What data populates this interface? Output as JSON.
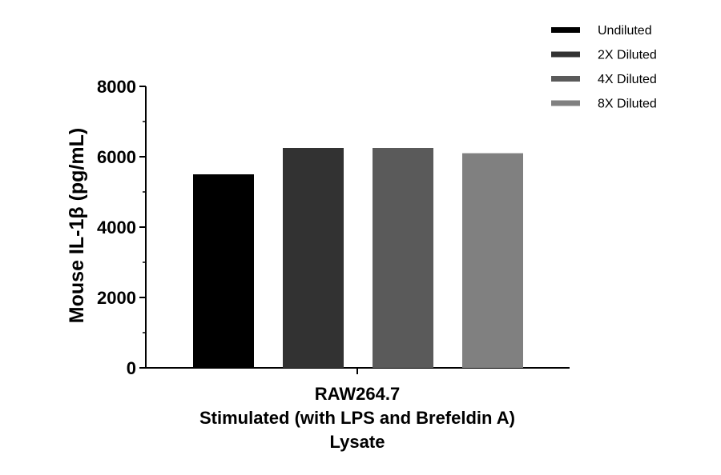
{
  "chart_data": {
    "type": "bar",
    "title": "",
    "ylabel": "Mouse IL-1β (pg/mL)",
    "xlabel_lines": [
      "RAW264.7",
      "Stimulated (with LPS and Brefeldin A)",
      "Lysate"
    ],
    "ylim": [
      0,
      8000
    ],
    "yticks": [
      0,
      2000,
      4000,
      6000,
      8000
    ],
    "categories": [
      "RAW264.7 Stimulated (with LPS and Brefeldin A) Lysate"
    ],
    "series": [
      {
        "name": "Undiluted",
        "values": [
          5500
        ],
        "color": "#000000"
      },
      {
        "name": "2X Diluted",
        "values": [
          6250
        ],
        "color": "#323232"
      },
      {
        "name": "4X Diluted",
        "values": [
          6250
        ],
        "color": "#5a5a5a"
      },
      {
        "name": "8X Diluted",
        "values": [
          6100
        ],
        "color": "#808080"
      }
    ],
    "legend_position": "top-right"
  }
}
